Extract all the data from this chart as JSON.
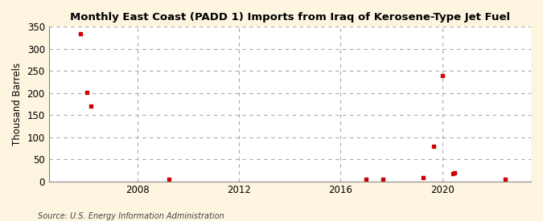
{
  "title": "Monthly East Coast (PADD 1) Imports from Iraq of Kerosene-Type Jet Fuel",
  "ylabel": "Thousand Barrels",
  "source": "Source: U.S. Energy Information Administration",
  "background_color": "#fdf5e0",
  "plot_background_color": "#ffffff",
  "marker_color": "#cc0000",
  "marker_size": 3.5,
  "marker_style": "s",
  "grid_color": "#aaaaaa",
  "ylim": [
    0,
    350
  ],
  "yticks": [
    0,
    50,
    100,
    150,
    200,
    250,
    300,
    350
  ],
  "xlim_start": 2004.5,
  "xlim_end": 2023.5,
  "xticks": [
    2008,
    2012,
    2016,
    2020
  ],
  "vline_color": "#aaaaaa",
  "data_points": [
    {
      "date": 2005.75,
      "value": 335
    },
    {
      "date": 2006.0,
      "value": 202
    },
    {
      "date": 2006.17,
      "value": 170
    },
    {
      "date": 2009.25,
      "value": 5
    },
    {
      "date": 2017.0,
      "value": 5
    },
    {
      "date": 2017.67,
      "value": 4
    },
    {
      "date": 2019.25,
      "value": 8
    },
    {
      "date": 2019.67,
      "value": 80
    },
    {
      "date": 2020.0,
      "value": 240
    },
    {
      "date": 2020.42,
      "value": 18
    },
    {
      "date": 2020.5,
      "value": 20
    },
    {
      "date": 2022.5,
      "value": 5
    }
  ]
}
